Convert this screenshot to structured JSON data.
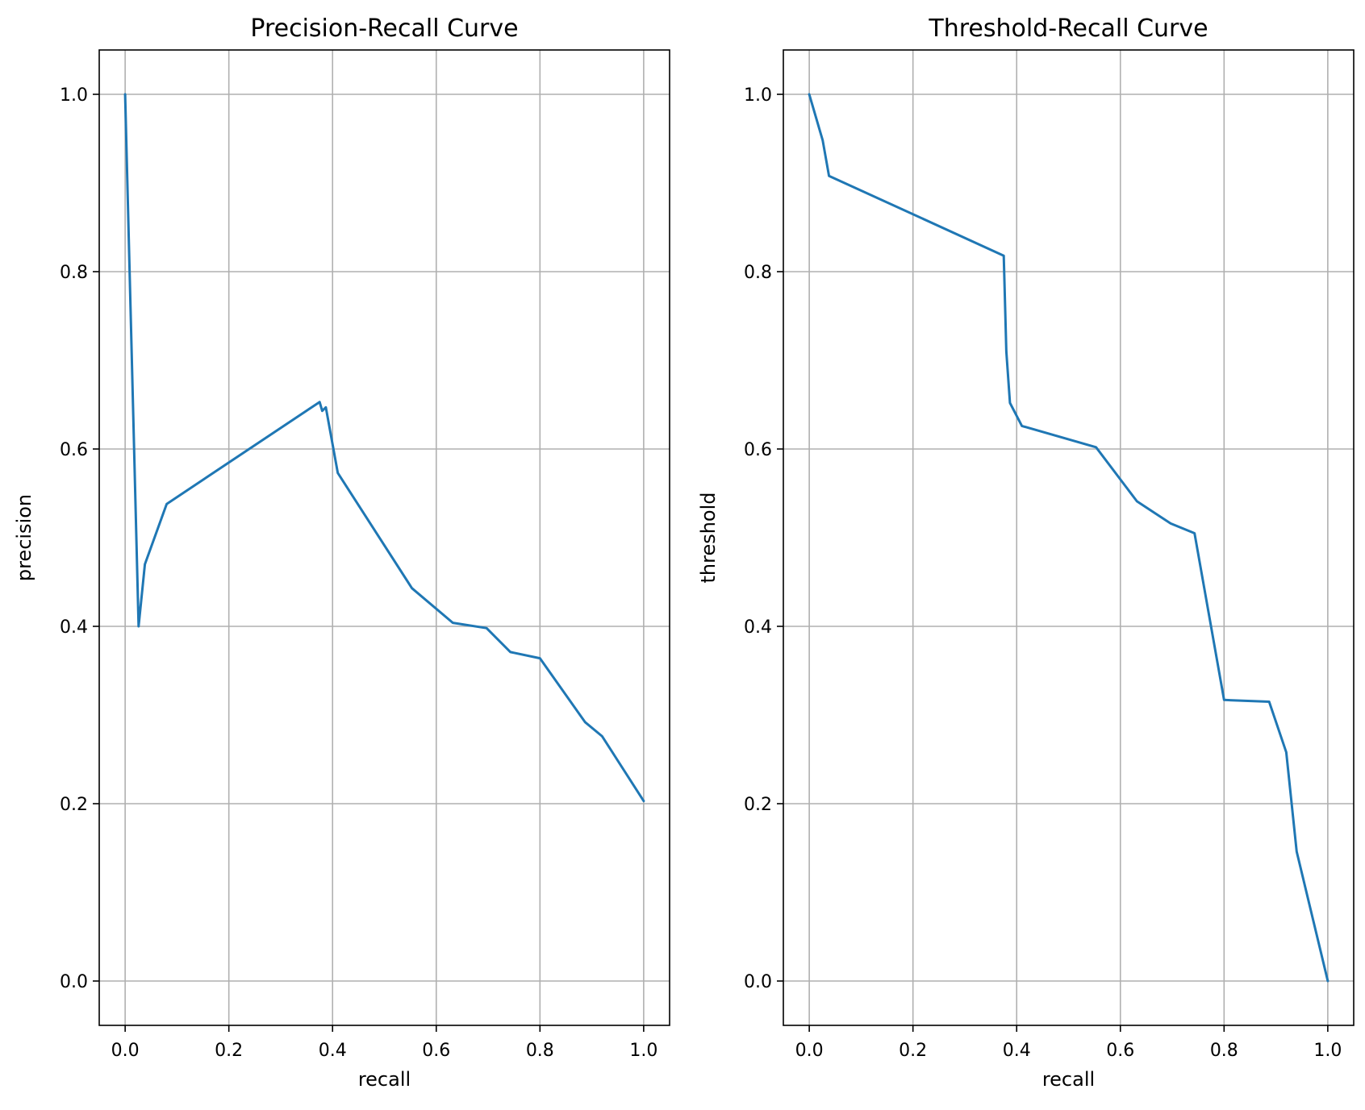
{
  "chart_data": [
    {
      "type": "line",
      "title": "Precision-Recall Curve",
      "xlabel": "recall",
      "ylabel": "precision",
      "xlim": [
        -0.05,
        1.05
      ],
      "ylim": [
        -0.05,
        1.05
      ],
      "xticks": [
        "0.0",
        "0.2",
        "0.4",
        "0.6",
        "0.8",
        "1.0"
      ],
      "yticks": [
        "0.0",
        "0.2",
        "0.4",
        "0.6",
        "0.8",
        "1.0"
      ],
      "grid": true,
      "color": "#1f77b4",
      "series": [
        {
          "x": [
            0.0,
            0.026,
            0.038,
            0.08,
            0.375,
            0.38,
            0.387,
            0.41,
            0.553,
            0.632,
            0.697,
            0.743,
            0.8,
            0.887,
            0.92,
            1.0
          ],
          "y": [
            1.0,
            0.4,
            0.47,
            0.538,
            0.653,
            0.643,
            0.647,
            0.573,
            0.443,
            0.404,
            0.398,
            0.371,
            0.364,
            0.292,
            0.276,
            0.203
          ]
        }
      ]
    },
    {
      "type": "line",
      "title": "Threshold-Recall Curve",
      "xlabel": "recall",
      "ylabel": "threshold",
      "xlim": [
        -0.05,
        1.05
      ],
      "ylim": [
        -0.05,
        1.05
      ],
      "xticks": [
        "0.0",
        "0.2",
        "0.4",
        "0.6",
        "0.8",
        "1.0"
      ],
      "yticks": [
        "0.0",
        "0.2",
        "0.4",
        "0.6",
        "0.8",
        "1.0"
      ],
      "grid": true,
      "color": "#1f77b4",
      "series": [
        {
          "x": [
            0.0,
            0.026,
            0.038,
            0.375,
            0.38,
            0.387,
            0.41,
            0.553,
            0.632,
            0.697,
            0.743,
            0.8,
            0.887,
            0.92,
            0.94,
            1.0
          ],
          "y": [
            1.0,
            0.948,
            0.908,
            0.818,
            0.71,
            0.652,
            0.626,
            0.602,
            0.541,
            0.516,
            0.505,
            0.317,
            0.315,
            0.258,
            0.146,
            0.0
          ]
        }
      ]
    }
  ]
}
